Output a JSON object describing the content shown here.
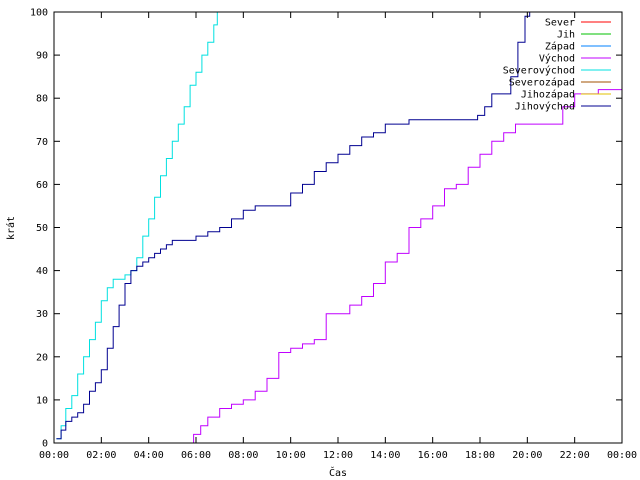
{
  "chart_data": {
    "type": "line",
    "title": "",
    "xlabel": "Čas",
    "ylabel": "krát",
    "xlim": [
      0,
      24
    ],
    "ylim": [
      0,
      100
    ],
    "x_ticks": [
      {
        "value": 0,
        "label": "00:00"
      },
      {
        "value": 2,
        "label": "02:00"
      },
      {
        "value": 4,
        "label": "04:00"
      },
      {
        "value": 6,
        "label": "06:00"
      },
      {
        "value": 8,
        "label": "08:00"
      },
      {
        "value": 10,
        "label": "10:00"
      },
      {
        "value": 12,
        "label": "12:00"
      },
      {
        "value": 14,
        "label": "14:00"
      },
      {
        "value": 16,
        "label": "16:00"
      },
      {
        "value": 18,
        "label": "18:00"
      },
      {
        "value": 20,
        "label": "20:00"
      },
      {
        "value": 22,
        "label": "22:00"
      },
      {
        "value": 24,
        "label": "00:00"
      }
    ],
    "y_ticks": [
      0,
      10,
      20,
      30,
      40,
      50,
      60,
      70,
      80,
      90,
      100
    ],
    "grid": false,
    "legend_position": "top-right",
    "series": [
      {
        "name": "Sever",
        "color": "#ff0000",
        "x": [],
        "y": []
      },
      {
        "name": "Jih",
        "color": "#00c000",
        "x": [],
        "y": []
      },
      {
        "name": "Západ",
        "color": "#0080ff",
        "x": [],
        "y": []
      },
      {
        "name": "Východ",
        "color": "#c000ff",
        "x": [
          5.6,
          5.9,
          6.2,
          6.5,
          7.0,
          7.5,
          8.0,
          8.5,
          9.0,
          9.5,
          10.0,
          10.5,
          11.0,
          11.5,
          12.0,
          12.5,
          13.0,
          13.5,
          14.0,
          14.5,
          15.0,
          15.5,
          16.0,
          16.5,
          17.0,
          17.5,
          18.0,
          18.5,
          19.0,
          19.5,
          20.0,
          20.5,
          21.0,
          21.5,
          22.0,
          22.5,
          23.0,
          23.5,
          24.0
        ],
        "y": [
          0,
          2,
          4,
          6,
          8,
          9,
          10,
          12,
          15,
          21,
          22,
          23,
          24,
          30,
          30,
          32,
          34,
          37,
          42,
          44,
          50,
          52,
          55,
          59,
          60,
          64,
          67,
          70,
          72,
          74,
          74,
          74,
          74,
          78,
          81,
          81,
          82,
          82,
          84
        ]
      },
      {
        "name": "Severovýchod",
        "color": "#00e0e0",
        "x": [
          0.1,
          0.3,
          0.5,
          0.75,
          1.0,
          1.25,
          1.5,
          1.75,
          2.0,
          2.25,
          2.5,
          2.75,
          3.0,
          3.25,
          3.5,
          3.75,
          4.0,
          4.25,
          4.5,
          4.75,
          5.0,
          5.25,
          5.5,
          5.75,
          6.0,
          6.25,
          6.5,
          6.75,
          6.9
        ],
        "y": [
          1,
          4,
          8,
          11,
          16,
          20,
          24,
          28,
          33,
          36,
          38,
          38,
          39,
          40,
          43,
          48,
          52,
          57,
          62,
          66,
          70,
          74,
          78,
          83,
          86,
          90,
          93,
          97,
          100
        ]
      },
      {
        "name": "Severozápad",
        "color": "#a05000",
        "x": [],
        "y": []
      },
      {
        "name": "Jihozápad",
        "color": "#e0c000",
        "x": [],
        "y": []
      },
      {
        "name": "Jihovýchod",
        "color": "#000090",
        "x": [
          0.1,
          0.3,
          0.5,
          0.75,
          1.0,
          1.25,
          1.5,
          1.75,
          2.0,
          2.25,
          2.5,
          2.75,
          3.0,
          3.25,
          3.5,
          3.75,
          4.0,
          4.25,
          4.5,
          4.75,
          5.0,
          5.5,
          6.0,
          6.5,
          7.0,
          7.5,
          8.0,
          8.5,
          9.0,
          9.5,
          10.0,
          10.5,
          11.0,
          11.5,
          12.0,
          12.5,
          13.0,
          13.5,
          14.0,
          15.0,
          16.0,
          17.0,
          17.6,
          17.9,
          18.2,
          18.5,
          19.0,
          19.3,
          19.6,
          19.9,
          20.1,
          20.5,
          21.0,
          21.5,
          22.0,
          22.5,
          23.0,
          23.5,
          24.0
        ],
        "y": [
          1,
          3,
          5,
          6,
          7,
          9,
          12,
          14,
          17,
          22,
          27,
          32,
          37,
          40,
          41,
          42,
          43,
          44,
          45,
          46,
          47,
          47,
          48,
          49,
          50,
          52,
          54,
          55,
          55,
          55,
          58,
          60,
          63,
          65,
          67,
          69,
          71,
          72,
          74,
          75,
          75,
          75,
          75,
          76,
          78,
          81,
          81,
          85,
          93,
          99,
          100,
          100,
          100,
          100,
          100,
          100,
          100,
          100,
          100
        ]
      }
    ]
  }
}
